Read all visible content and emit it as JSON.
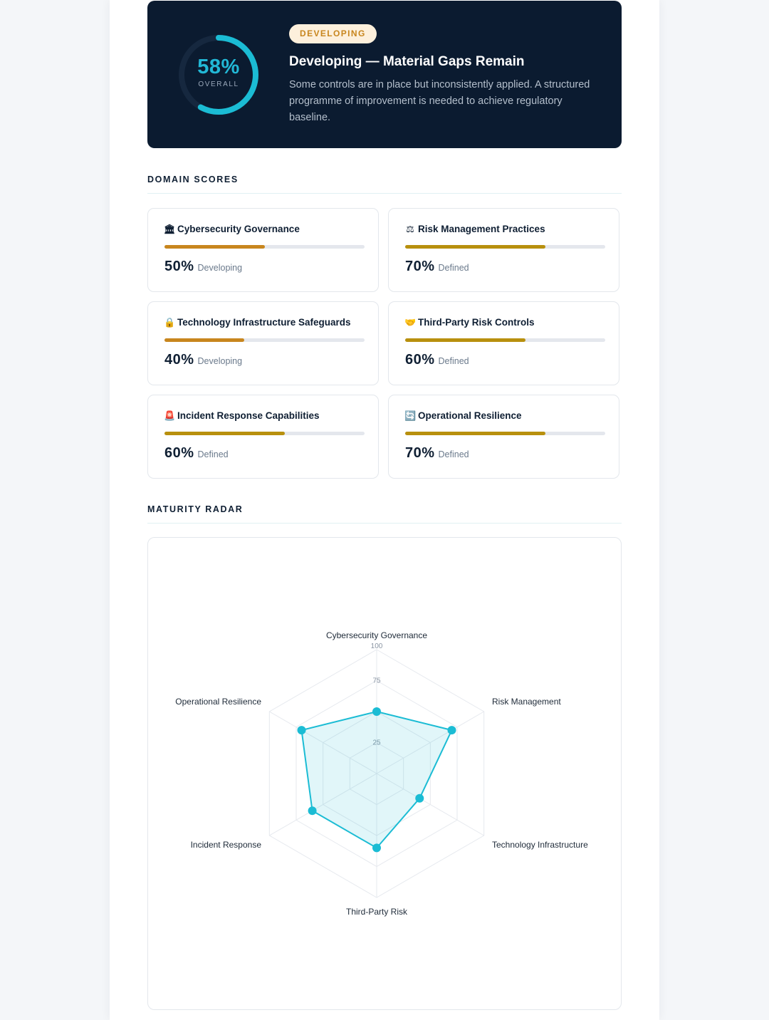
{
  "hero": {
    "overall_pct": "58%",
    "overall_value": 58,
    "overall_label": "OVERALL",
    "badge": "DEVELOPING",
    "title": "Developing — Material Gaps Remain",
    "description": "Some controls are in place but inconsistently applied. A structured programme of improvement is needed to achieve regulatory baseline."
  },
  "sections": {
    "domain_scores": "DOMAIN SCORES",
    "maturity_radar": "MATURITY RADAR"
  },
  "domains": [
    {
      "icon": "bank-icon",
      "glyph": "🏛",
      "name": "Cybersecurity Governance",
      "pct": "50%",
      "value": 50,
      "level": "Developing",
      "color": "#c8861e"
    },
    {
      "icon": "scales-icon",
      "glyph": "⚖",
      "name": "Risk Management Practices",
      "pct": "70%",
      "value": 70,
      "level": "Defined",
      "color": "#b8900e"
    },
    {
      "icon": "lock-icon",
      "glyph": "🔒",
      "name": "Technology Infrastructure Safeguards",
      "pct": "40%",
      "value": 40,
      "level": "Developing",
      "color": "#c8861e"
    },
    {
      "icon": "handshake-icon",
      "glyph": "🤝",
      "name": "Third-Party Risk Controls",
      "pct": "60%",
      "value": 60,
      "level": "Defined",
      "color": "#b8900e"
    },
    {
      "icon": "siren-icon",
      "glyph": "🚨",
      "name": "Incident Response Capabilities",
      "pct": "60%",
      "value": 60,
      "level": "Defined",
      "color": "#b8900e"
    },
    {
      "icon": "cycle-arrows-icon",
      "glyph": "🔄",
      "name": "Operational Resilience",
      "pct": "70%",
      "value": 70,
      "level": "Defined",
      "color": "#b8900e"
    }
  ],
  "chart_data": {
    "type": "radar",
    "axes": [
      "Cybersecurity Governance",
      "Risk Management",
      "Technology Infrastructure",
      "Third-Party Risk",
      "Incident Response",
      "Operational Resilience"
    ],
    "values": [
      50,
      70,
      40,
      60,
      60,
      70
    ],
    "range": [
      0,
      100
    ],
    "tick_labels": [
      "25",
      "75",
      "100"
    ],
    "color": "#1bbcd4"
  }
}
